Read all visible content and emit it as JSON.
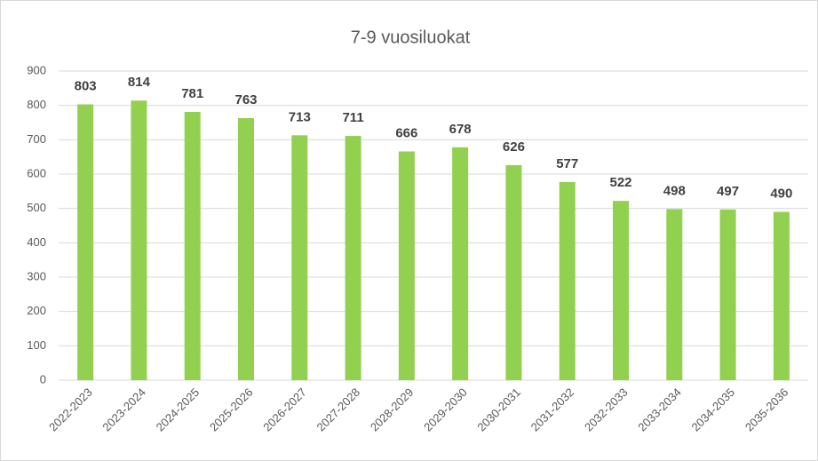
{
  "chart_data": {
    "type": "bar",
    "title": "7-9 vuosiluokat",
    "categories": [
      "2022-2023",
      "2023-2024",
      "2024-2025",
      "2025-2026",
      "2026-2027",
      "2027-2028",
      "2028-2029",
      "2029-2030",
      "2030-2031",
      "2031-2032",
      "2032-2033",
      "2033-2034",
      "2034-2035",
      "2035-2036"
    ],
    "values": [
      803,
      814,
      781,
      763,
      713,
      711,
      666,
      678,
      626,
      577,
      522,
      498,
      497,
      490
    ],
    "color": "#92d050",
    "ylim": [
      0,
      900
    ],
    "yticks": [
      0,
      100,
      200,
      300,
      400,
      500,
      600,
      700,
      800,
      900
    ],
    "grid": true
  }
}
